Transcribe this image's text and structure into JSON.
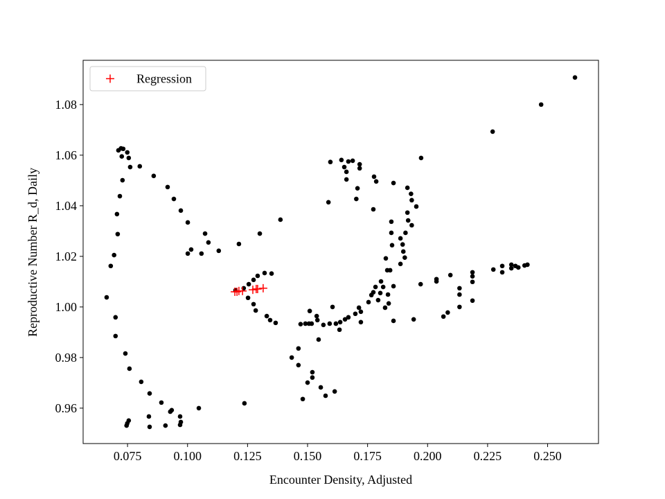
{
  "chart_data": {
    "type": "scatter",
    "x_label": "Encounter Density, Adjusted",
    "y_label": "Reproductive Number R_d, Daily",
    "xlim": [
      0.0565,
      0.2712
    ],
    "ylim": [
      0.946,
      1.0975
    ],
    "xticks": [
      0.075,
      {
        "value": 0.1,
        "label": "0.100"
      },
      0.125,
      {
        "value": 0.15,
        "label": "0.150"
      },
      0.175,
      {
        "value": 0.2,
        "label": "0.200"
      },
      0.225,
      {
        "value": 0.25,
        "label": "0.250"
      }
    ],
    "yticks": [
      0.96,
      0.98,
      {
        "value": 1,
        "label": "1.00"
      },
      1.02,
      1.04,
      1.06,
      1.08
    ],
    "legend_position": "upper left",
    "points": {
      "color": "#000000",
      "x": [
        0.0663,
        0.068,
        0.0694,
        0.0706,
        0.0709,
        0.0718,
        0.0729,
        0.0712,
        0.0723,
        0.0732,
        0.0726,
        0.0749,
        0.0755,
        0.0761,
        0.0801,
        0.0859,
        0.0917,
        0.0943,
        0.0972,
        0.1001,
        0.1073,
        0.1087,
        0.113,
        0.1015,
        0.1001,
        0.1058,
        0.07,
        0.07,
        0.0741,
        0.0758,
        0.0807,
        0.0842,
        0.0891,
        0.0928,
        0.0934,
        0.0969,
        0.0972,
        0.0969,
        0.0908,
        0.0842,
        0.0839,
        0.0755,
        0.0749,
        0.0746,
        0.1047,
        0.1237,
        0.1214,
        0.1301,
        0.1387,
        0.12,
        0.1234,
        0.1255,
        0.1275,
        0.1292,
        0.1321,
        0.135,
        0.1252,
        0.1275,
        0.1284,
        0.133,
        0.1344,
        0.1367,
        0.1434,
        0.1462,
        0.1462,
        0.1471,
        0.1491,
        0.1506,
        0.1517,
        0.1509,
        0.1538,
        0.1541,
        0.1546,
        0.148,
        0.15,
        0.152,
        0.152,
        0.1555,
        0.1575,
        0.1613,
        0.1566,
        0.1592,
        0.1604,
        0.1618,
        0.1633,
        0.1636,
        0.1656,
        0.167,
        0.1699,
        0.1714,
        0.1722,
        0.1722,
        0.1754,
        0.1766,
        0.1774,
        0.1783,
        0.1794,
        0.1803,
        0.1806,
        0.1815,
        0.1823,
        0.1838,
        0.1835,
        0.1832,
        0.1826,
        0.1844,
        0.1852,
        0.1849,
        0.1849,
        0.1858,
        0.1858,
        0.1887,
        0.1887,
        0.1896,
        0.1899,
        0.1905,
        0.1908,
        0.1916,
        0.1919,
        0.1934,
        0.1916,
        0.1931,
        0.1934,
        0.1953,
        0.1858,
        0.1777,
        0.1786,
        0.1774,
        0.1708,
        0.1703,
        0.1717,
        0.1717,
        0.1688,
        0.167,
        0.1662,
        0.1662,
        0.1653,
        0.1641,
        0.1595,
        0.1587,
        0.1973,
        0.1942,
        0.1971,
        0.2037,
        0.2037,
        0.2095,
        0.2066,
        0.2084,
        0.2133,
        0.2133,
        0.2133,
        0.2187,
        0.2187,
        0.2187,
        0.2187,
        0.2274,
        0.2311,
        0.2311,
        0.2349,
        0.2349,
        0.2366,
        0.2378,
        0.2404,
        0.2416,
        0.2271,
        0.2473,
        0.2614
      ],
      "y": [
        1.0038,
        1.0162,
        1.0205,
        1.0367,
        1.0288,
        1.0438,
        1.0501,
        1.0619,
        1.0627,
        1.0625,
        1.0595,
        1.0611,
        1.0589,
        1.0553,
        1.0556,
        1.0518,
        1.0474,
        1.0427,
        1.0381,
        1.0334,
        1.029,
        1.0255,
        1.0222,
        1.0227,
        1.0211,
        1.0211,
        0.9959,
        0.9885,
        0.9816,
        0.9756,
        0.9704,
        0.9658,
        0.9622,
        0.9586,
        0.9592,
        0.9567,
        0.9545,
        0.9534,
        0.9531,
        0.9526,
        0.9567,
        0.9551,
        0.954,
        0.9531,
        0.96,
        0.9619,
        1.0249,
        1.029,
        1.0345,
        1.0066,
        1.0074,
        1.009,
        1.0107,
        1.0123,
        1.0134,
        1.0132,
        1.0036,
        1.0011,
        0.9986,
        0.9964,
        0.9948,
        0.9937,
        0.98,
        0.9836,
        0.977,
        0.9932,
        0.9934,
        0.9934,
        0.9934,
        0.9984,
        0.9964,
        0.9948,
        0.9871,
        0.9636,
        0.9701,
        0.9721,
        0.9742,
        0.9682,
        0.9649,
        0.9666,
        0.9929,
        0.9934,
        1.0,
        0.9934,
        0.991,
        0.994,
        0.9951,
        0.9959,
        0.9973,
        0.9997,
        0.9981,
        0.994,
        1.0019,
        1.0047,
        1.0058,
        1.0079,
        1.0027,
        1.0055,
        1.0101,
        1.0079,
        0.9997,
        1.0014,
        1.0049,
        1.0145,
        1.0192,
        1.0145,
        1.0244,
        1.0293,
        1.0337,
        1.0082,
        0.9945,
        1.017,
        1.0271,
        1.0247,
        1.0219,
        1.0195,
        1.0293,
        1.0373,
        1.0342,
        1.0323,
        1.0471,
        1.0447,
        1.0422,
        1.0397,
        1.049,
        1.0515,
        1.0496,
        1.0386,
        1.0469,
        1.0427,
        1.0564,
        1.0548,
        1.0578,
        1.0575,
        1.0534,
        1.0504,
        1.0553,
        1.0581,
        1.0573,
        1.0414,
        1.0589,
        0.9951,
        1.009,
        1.011,
        1.0101,
        1.0126,
        0.9962,
        0.9978,
        1.0074,
        1.0049,
        1.0,
        1.0137,
        1.0121,
        1.0099,
        1.0025,
        1.0148,
        1.0162,
        1.0137,
        1.0167,
        1.0153,
        1.0162,
        1.0156,
        1.0164,
        1.0167,
        1.0693,
        1.08,
        1.0907
      ]
    },
    "series": [
      {
        "name": "Regression",
        "color": "#ff0000",
        "x": [
          0.1197,
          0.1206,
          0.1214,
          0.1229,
          0.1272,
          0.1286,
          0.1292,
          0.1315
        ],
        "y": [
          1.006,
          1.006,
          1.0063,
          1.0063,
          1.0068,
          1.0071,
          1.0071,
          1.0074
        ]
      }
    ]
  }
}
